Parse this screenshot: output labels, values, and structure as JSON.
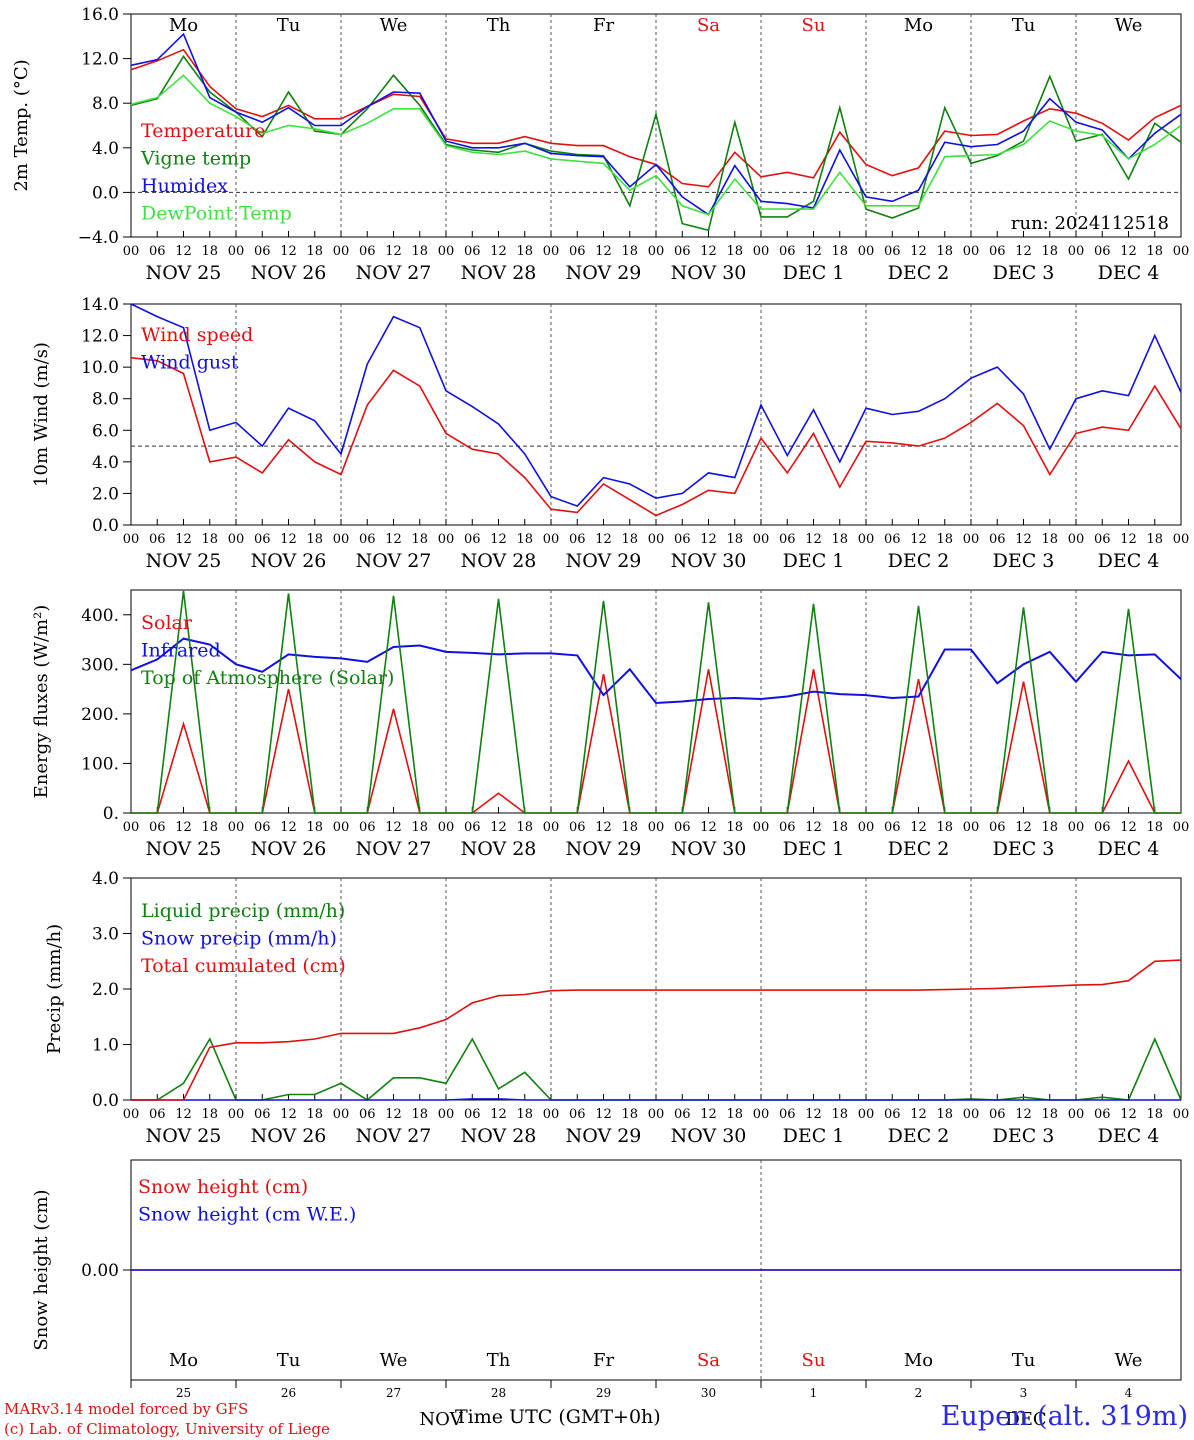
{
  "footer": {
    "line1": "MARv3.14 model forced by GFS",
    "line2": "(c) Lab. of Climatology, University of Liege",
    "station": "Eupen (alt. 319m)",
    "x_axis_title": "Time UTC (GMT+0h)"
  },
  "axis": {
    "hour_ticks": [
      "00",
      "06",
      "12",
      "18"
    ],
    "end_tick": "00",
    "date_labels": [
      "NOV 25",
      "NOV 26",
      "NOV 27",
      "NOV 28",
      "NOV 29",
      "NOV 30",
      "DEC  1",
      "DEC  2",
      "DEC  3",
      "DEC  4"
    ],
    "day_names": [
      "Mo",
      "Tu",
      "We",
      "Th",
      "Fr",
      "Sa",
      "Su",
      "Mo",
      "Tu",
      "We"
    ],
    "weekend_days": [
      5,
      6
    ],
    "bottom_day_numbers": [
      "25",
      "26",
      "27",
      "28",
      "29",
      "30",
      "1",
      "2",
      "3",
      "4"
    ],
    "bottom_month_labels": [
      "NOV",
      "DEC"
    ],
    "colors": {
      "weekday": "#000000",
      "weekend": "#e01010"
    }
  },
  "chart_data": [
    {
      "type": "line",
      "ylabel": "2m Temp. (°C)",
      "ylim": [
        -4,
        16
      ],
      "yticks": [
        "16.0",
        "12.0",
        "8.0",
        "4.0",
        "0.0",
        "−4.0"
      ],
      "ytick_values": [
        16,
        12,
        8,
        4,
        0,
        -4
      ],
      "reference_line": 0,
      "annotation": "run: 2024112518",
      "x_hours": [
        0,
        6,
        12,
        18,
        24,
        30,
        36,
        42,
        48,
        54,
        60,
        66,
        72,
        78,
        84,
        90,
        96,
        102,
        108,
        114,
        120,
        126,
        132,
        138,
        144,
        150,
        156,
        162,
        168,
        174,
        180,
        186,
        192,
        198,
        204,
        210,
        216,
        222,
        228,
        234,
        240
      ],
      "series": [
        {
          "name": "Temperature",
          "color": "#e01010",
          "values": [
            11.0,
            11.8,
            12.8,
            9.5,
            7.5,
            6.8,
            7.8,
            6.6,
            6.6,
            7.7,
            8.8,
            8.6,
            4.8,
            4.4,
            4.4,
            5.0,
            4.4,
            4.2,
            4.2,
            3.2,
            2.5,
            0.8,
            0.5,
            3.6,
            1.4,
            1.8,
            1.3,
            5.4,
            2.5,
            1.5,
            2.2,
            5.5,
            5.1,
            5.2,
            6.4,
            7.5,
            7.1,
            6.2,
            4.7,
            6.7,
            7.8
          ]
        },
        {
          "name": "Vigne temp",
          "color": "#108010",
          "values": [
            7.8,
            8.4,
            12.2,
            9.0,
            7.2,
            5.0,
            9.0,
            5.5,
            5.2,
            7.5,
            10.5,
            7.8,
            4.3,
            3.8,
            3.6,
            4.4,
            3.7,
            3.4,
            3.3,
            -1.2,
            7.0,
            -2.8,
            -3.4,
            6.3,
            -2.2,
            -2.2,
            -0.8,
            7.6,
            -1.5,
            -2.3,
            -1.4,
            7.6,
            2.6,
            3.3,
            4.6,
            10.4,
            4.6,
            5.2,
            1.2,
            6.2,
            4.5
          ]
        },
        {
          "name": "Humidex",
          "color": "#1010e0",
          "values": [
            11.4,
            11.9,
            14.2,
            8.5,
            7.2,
            6.3,
            7.6,
            6.0,
            6.0,
            7.7,
            9.0,
            8.9,
            4.6,
            4.0,
            4.0,
            4.4,
            3.5,
            3.3,
            3.2,
            0.5,
            2.5,
            -0.4,
            -2.0,
            2.4,
            -0.8,
            -1.0,
            -1.4,
            3.8,
            -0.4,
            -0.8,
            0.2,
            4.5,
            4.1,
            4.3,
            5.5,
            8.4,
            6.3,
            5.6,
            3.0,
            5.3,
            7.0
          ]
        },
        {
          "name": "DewPoint Temp",
          "color": "#40e040",
          "values": [
            7.9,
            8.5,
            10.5,
            8.0,
            6.8,
            5.3,
            6.0,
            5.7,
            5.2,
            6.2,
            7.5,
            7.5,
            4.2,
            3.6,
            3.4,
            3.7,
            3.0,
            2.8,
            2.6,
            0.2,
            1.5,
            -1.2,
            -2.0,
            1.2,
            -1.5,
            -1.5,
            -1.5,
            1.8,
            -1.2,
            -1.2,
            -1.2,
            3.2,
            3.3,
            3.4,
            4.3,
            6.4,
            5.5,
            5.1,
            3.0,
            4.3,
            6.0
          ]
        }
      ]
    },
    {
      "type": "line",
      "ylabel": "10m Wind (m/s)",
      "ylim": [
        0,
        14
      ],
      "yticks": [
        "14.0",
        "12.0",
        "10.0",
        "8.0",
        "6.0",
        "4.0",
        "2.0",
        "0.0"
      ],
      "ytick_values": [
        14,
        12,
        10,
        8,
        6,
        4,
        2,
        0
      ],
      "reference_line": 5,
      "x_hours": [
        0,
        6,
        12,
        18,
        24,
        30,
        36,
        42,
        48,
        54,
        60,
        66,
        72,
        78,
        84,
        90,
        96,
        102,
        108,
        114,
        120,
        126,
        132,
        138,
        144,
        150,
        156,
        162,
        168,
        174,
        180,
        186,
        192,
        198,
        204,
        210,
        216,
        222,
        228,
        234,
        240
      ],
      "series": [
        {
          "name": "Wind speed",
          "color": "#e01010",
          "values": [
            10.6,
            10.4,
            9.6,
            4.0,
            4.3,
            3.3,
            5.4,
            4.0,
            3.2,
            7.6,
            9.8,
            8.8,
            5.8,
            4.8,
            4.5,
            3.0,
            1.0,
            0.8,
            2.6,
            1.6,
            0.6,
            1.3,
            2.2,
            2.0,
            5.5,
            3.3,
            5.8,
            2.4,
            5.3,
            5.2,
            5.0,
            5.5,
            6.5,
            7.7,
            6.3,
            3.2,
            5.8,
            6.2,
            6.0,
            8.8,
            6.1
          ]
        },
        {
          "name": "Wind gust",
          "color": "#1010e0",
          "values": [
            14.0,
            13.2,
            12.5,
            6.0,
            6.5,
            5.0,
            7.4,
            6.6,
            4.5,
            10.2,
            13.2,
            12.5,
            8.5,
            7.5,
            6.4,
            4.5,
            1.8,
            1.2,
            3.0,
            2.6,
            1.7,
            2.0,
            3.3,
            3.0,
            7.6,
            4.4,
            7.3,
            4.0,
            7.4,
            7.0,
            7.2,
            8.0,
            9.3,
            10.0,
            8.3,
            4.8,
            8.0,
            8.5,
            8.2,
            12.0,
            8.4
          ]
        }
      ]
    },
    {
      "type": "line",
      "ylabel": "Energy fluxes (W/m²)",
      "ylim": [
        0,
        450
      ],
      "yticks": [
        "400.",
        "300.",
        "200.",
        "100.",
        "0."
      ],
      "ytick_values": [
        400,
        300,
        200,
        100,
        0
      ],
      "x_hours": [
        0,
        6,
        12,
        18,
        24,
        30,
        36,
        42,
        48,
        54,
        60,
        66,
        72,
        78,
        84,
        90,
        96,
        102,
        108,
        114,
        120,
        126,
        132,
        138,
        144,
        150,
        156,
        162,
        168,
        174,
        180,
        186,
        192,
        198,
        204,
        210,
        216,
        222,
        228,
        234,
        240
      ],
      "series": [
        {
          "name": "Solar",
          "color": "#e01010",
          "values": [
            0,
            0,
            180,
            0,
            0,
            0,
            250,
            0,
            0,
            0,
            210,
            0,
            0,
            0,
            40,
            0,
            0,
            0,
            280,
            0,
            0,
            0,
            290,
            0,
            0,
            0,
            290,
            0,
            0,
            0,
            270,
            0,
            0,
            0,
            265,
            0,
            0,
            0,
            105,
            0,
            0
          ]
        },
        {
          "name": "Infrared",
          "color": "#1010e0",
          "values": [
            288,
            310,
            352,
            340,
            300,
            285,
            320,
            315,
            312,
            305,
            335,
            338,
            325,
            323,
            320,
            322,
            322,
            318,
            238,
            290,
            222,
            225,
            230,
            232,
            230,
            235,
            245,
            240,
            238,
            232,
            235,
            330,
            330,
            262,
            300,
            325,
            265,
            325,
            318,
            320,
            270
          ]
        },
        {
          "name": "Top of Atmosphere (Solar)",
          "color": "#108010",
          "values": [
            0,
            0,
            448,
            0,
            0,
            0,
            443,
            0,
            0,
            0,
            438,
            0,
            0,
            0,
            432,
            0,
            0,
            0,
            428,
            0,
            0,
            0,
            425,
            0,
            0,
            0,
            422,
            0,
            0,
            0,
            418,
            0,
            0,
            0,
            415,
            0,
            0,
            0,
            412,
            0,
            0
          ]
        }
      ]
    },
    {
      "type": "line",
      "ylabel": "Precip (mm/h)",
      "ylim": [
        0,
        4
      ],
      "yticks": [
        "4.0",
        "3.0",
        "2.0",
        "1.0",
        "0.0"
      ],
      "ytick_values": [
        4,
        3,
        2,
        1,
        0
      ],
      "x_hours": [
        0,
        6,
        12,
        18,
        24,
        30,
        36,
        42,
        48,
        54,
        60,
        66,
        72,
        78,
        84,
        90,
        96,
        102,
        108,
        114,
        120,
        126,
        132,
        138,
        144,
        150,
        156,
        162,
        168,
        174,
        180,
        186,
        192,
        198,
        204,
        210,
        216,
        222,
        228,
        234,
        240
      ],
      "series": [
        {
          "name": "Liquid precip (mm/h)",
          "color": "#108010",
          "values": [
            0,
            0,
            0.3,
            1.1,
            0,
            0,
            0.1,
            0.1,
            0.3,
            0,
            0.4,
            0.4,
            0.3,
            1.1,
            0.2,
            0.5,
            0,
            0,
            0,
            0,
            0,
            0,
            0,
            0,
            0,
            0,
            0,
            0,
            0,
            0,
            0,
            0,
            0.02,
            0,
            0.05,
            0,
            0,
            0.05,
            0,
            1.1,
            0
          ]
        },
        {
          "name": "Snow precip (mm/h)",
          "color": "#1010e0",
          "values": [
            0,
            0,
            0,
            0,
            0,
            0,
            0,
            0,
            0,
            0,
            0,
            0,
            0,
            0.02,
            0.02,
            0,
            0,
            0,
            0,
            0,
            0,
            0,
            0,
            0,
            0,
            0,
            0,
            0,
            0,
            0,
            0,
            0,
            0,
            0,
            0,
            0,
            0,
            0,
            0,
            0,
            0
          ]
        },
        {
          "name": "Total cumulated (cm)",
          "color": "#e01010",
          "values": [
            0,
            0,
            0,
            0.95,
            1.03,
            1.03,
            1.05,
            1.1,
            1.2,
            1.2,
            1.2,
            1.3,
            1.45,
            1.75,
            1.88,
            1.9,
            1.97,
            1.98,
            1.98,
            1.98,
            1.98,
            1.98,
            1.98,
            1.98,
            1.98,
            1.98,
            1.98,
            1.98,
            1.98,
            1.98,
            1.98,
            1.99,
            2.0,
            2.01,
            2.03,
            2.05,
            2.07,
            2.08,
            2.15,
            2.5,
            2.52
          ]
        }
      ]
    },
    {
      "type": "line",
      "ylabel": "Snow height (cm)",
      "yticks": [
        "0.00"
      ],
      "ytick_values": [
        0
      ],
      "x_hours": [
        0,
        240
      ],
      "series": [
        {
          "name": "Snow height (cm)",
          "color": "#e01010",
          "values": [
            0,
            0
          ]
        },
        {
          "name": "Snow height (cm W.E.)",
          "color": "#1010e0",
          "values": [
            0,
            0
          ]
        }
      ]
    }
  ]
}
